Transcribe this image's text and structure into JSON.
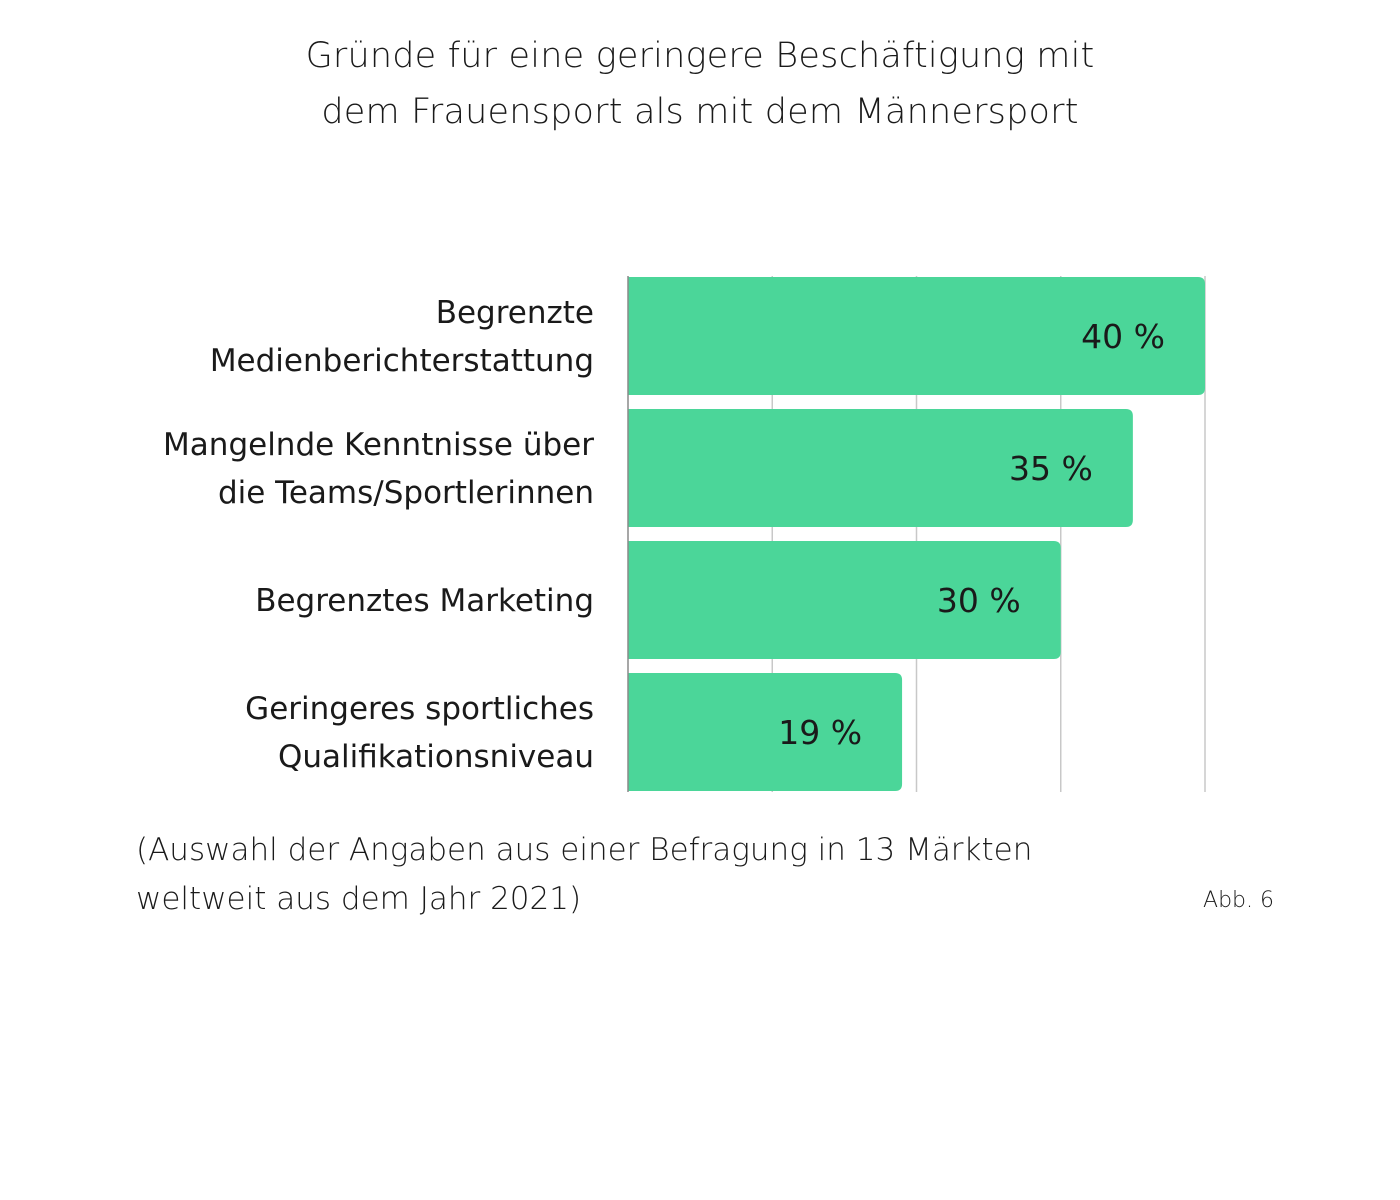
{
  "chart_data": {
    "type": "bar",
    "orientation": "horizontal",
    "title_lines": [
      "Gründe für eine geringere Beschäftigung mit",
      "dem Frauensport als mit dem Männersport"
    ],
    "categories": [
      [
        "Begrenzte",
        "Medienberichterstattung"
      ],
      [
        "Mangelnde Kenntnisse über",
        "die Teams/Sportlerinnen"
      ],
      [
        "Begrenztes Marketing"
      ],
      [
        "Geringeres sportliches",
        "Qualifikationsniveau"
      ]
    ],
    "values": [
      40,
      35,
      30,
      19
    ],
    "value_labels": [
      "40 %",
      "35 %",
      "30 %",
      "19 %"
    ],
    "xlim": [
      0,
      40
    ],
    "gridlines_at": [
      10,
      20,
      30,
      40
    ],
    "grid": true,
    "bar_color": "#4bd699",
    "grid_color": "#c8c8c8"
  },
  "footnote_lines": [
    "(Auswahl der Angaben aus einer Befragung in 13 Märkten",
    "weltweit aus dem Jahr 2021)"
  ],
  "figure_label": "Abb. 6"
}
